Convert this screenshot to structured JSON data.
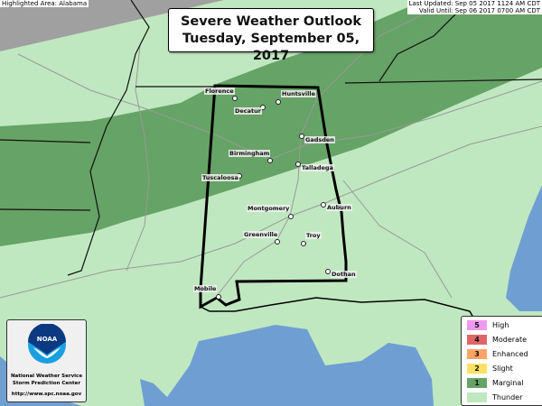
{
  "header": {
    "highlighted_area": "Highlighted Area: Alabama",
    "last_updated": "Last Updated: Sep 05 2017 1124 AM CDT",
    "valid_until": "Valid Until: Sep 06 2017 0700 AM CDT",
    "title_line1": "Severe Weather Outlook",
    "title_line2": "Tuesday, September 05, 2017"
  },
  "colors": {
    "thunder": "#c0e8c0",
    "marginal": "#66a366",
    "slight": "#ffe066",
    "enhanced": "#ffa366",
    "moderate": "#e06666",
    "high": "#ee99ee",
    "water": "#6f9fd2",
    "outside": "#a0a0a0"
  },
  "cities": [
    {
      "name": "Florence"
    },
    {
      "name": "Huntsville"
    },
    {
      "name": "Decatur"
    },
    {
      "name": "Gadsden"
    },
    {
      "name": "Birmingham"
    },
    {
      "name": "Talladega"
    },
    {
      "name": "Tuscaloosa"
    },
    {
      "name": "Montgomery"
    },
    {
      "name": "Auburn"
    },
    {
      "name": "Greenville"
    },
    {
      "name": "Troy"
    },
    {
      "name": "Dothan"
    },
    {
      "name": "Mobile"
    }
  ],
  "logo": {
    "text": "NOAA",
    "line1": "National Weather Service",
    "line2": "Storm Prediction Center",
    "url": "http://www.spc.noaa.gov"
  },
  "legend": [
    {
      "num": "5",
      "label": "High"
    },
    {
      "num": "4",
      "label": "Moderate"
    },
    {
      "num": "3",
      "label": "Enhanced"
    },
    {
      "num": "2",
      "label": "Slight"
    },
    {
      "num": "1",
      "label": "Marginal"
    },
    {
      "num": "",
      "label": "Thunder"
    }
  ]
}
